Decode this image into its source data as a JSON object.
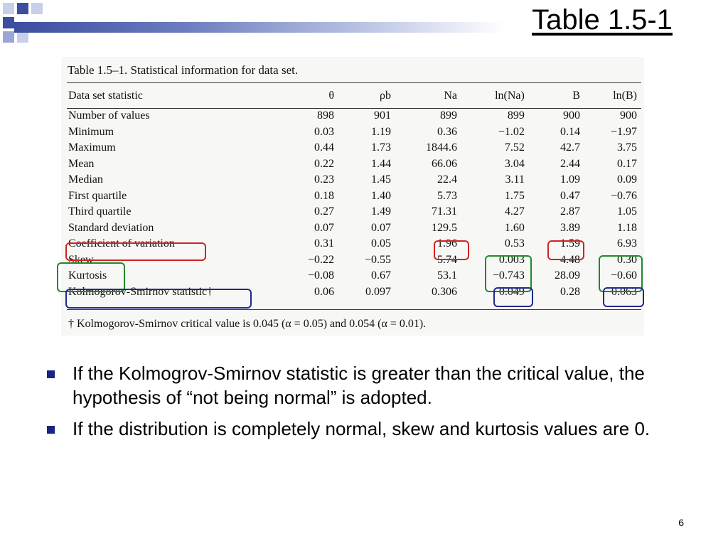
{
  "slide": {
    "title": "Table 1.5-1",
    "page_number": "6"
  },
  "table_caption": "Table 1.5–1. Statistical information for data set.",
  "columns": [
    "Data set statistic",
    "θ",
    "ρb",
    "Na",
    "ln(Na)",
    "B",
    "ln(B)"
  ],
  "rows": [
    {
      "label": "Number of values",
      "values": [
        "898",
        "901",
        "899",
        "899",
        "900",
        "900"
      ]
    },
    {
      "label": "Minimum",
      "values": [
        "0.03",
        "1.19",
        "0.36",
        "−1.02",
        "0.14",
        "−1.97"
      ]
    },
    {
      "label": "Maximum",
      "values": [
        "0.44",
        "1.73",
        "1844.6",
        "7.52",
        "42.7",
        "3.75"
      ]
    },
    {
      "label": "Mean",
      "values": [
        "0.22",
        "1.44",
        "66.06",
        "3.04",
        "2.44",
        "0.17"
      ]
    },
    {
      "label": "Median",
      "values": [
        "0.23",
        "1.45",
        "22.4",
        "3.11",
        "1.09",
        "0.09"
      ]
    },
    {
      "label": "First quartile",
      "values": [
        "0.18",
        "1.40",
        "5.73",
        "1.75",
        "0.47",
        "−0.76"
      ]
    },
    {
      "label": "Third quartile",
      "values": [
        "0.27",
        "1.49",
        "71.31",
        "4.27",
        "2.87",
        "1.05"
      ]
    },
    {
      "label": "Standard deviation",
      "values": [
        "0.07",
        "0.07",
        "129.5",
        "1.60",
        "3.89",
        "1.18"
      ]
    },
    {
      "label": "Coefficient of variation",
      "values": [
        "0.31",
        "0.05",
        "1.96",
        "0.53",
        "1.59",
        "6.93"
      ]
    },
    {
      "label": "Skew",
      "values": [
        "−0.22",
        "−0.55",
        "5.74",
        "0.003",
        "4.48",
        "0.30"
      ]
    },
    {
      "label": "Kurtosis",
      "values": [
        "−0.08",
        "0.67",
        "53.1",
        "−0.743",
        "28.09",
        "−0.60"
      ]
    },
    {
      "label": "Kolmogorov-Smirnov statistic†",
      "values": [
        "0.06",
        "0.097",
        "0.306",
        "0.049",
        "0.28",
        "0.063"
      ]
    }
  ],
  "footnote": "† Kolmogorov-Smirnov critical value is 0.045 (α = 0.05) and 0.054 (α = 0.01).",
  "bullets": [
    "If the Kolmogrov-Smirnov statistic is greater than the critical value, the hypothesis of “not being normal” is adopted.",
    "If the distribution is completely normal, skew and kurtosis values are 0."
  ],
  "colors": {
    "accent": "#1a237e",
    "highlight_red": "#d42222",
    "highlight_green": "#1f8a2a",
    "highlight_blue": "#1f2a8a"
  }
}
